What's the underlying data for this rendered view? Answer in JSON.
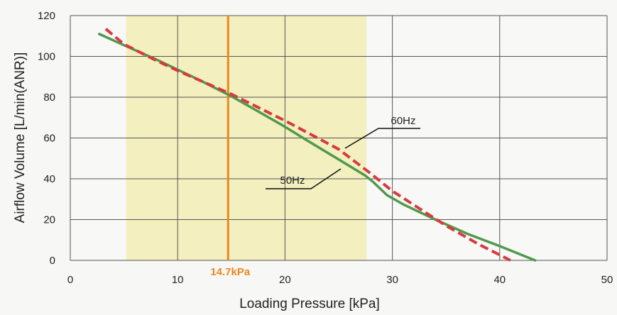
{
  "chart_data": {
    "type": "line",
    "xlabel": "Loading Pressure [kPa]",
    "ylabel": "Airflow Volume [L/min(ANR)]",
    "xlim": [
      0,
      50
    ],
    "ylim": [
      0,
      120
    ],
    "x_ticks": [
      0,
      10,
      20,
      30,
      40,
      50
    ],
    "y_ticks": [
      0,
      20,
      40,
      60,
      80,
      100,
      120
    ],
    "grid": true,
    "highlight_band": {
      "x_from": 5.2,
      "x_to": 27.6,
      "color": "#f3efbf"
    },
    "marker_line": {
      "x": 14.7,
      "label": "14.7kPa",
      "color": "#e8891e"
    },
    "series": [
      {
        "name": "50Hz",
        "color": "#4f9a4a",
        "style": "solid",
        "x": [
          2.7,
          5,
          8,
          10,
          12,
          15,
          18,
          20,
          22,
          25,
          27.5,
          28.2,
          29.5,
          31,
          34,
          37,
          40,
          43.3
        ],
        "y": [
          111,
          105.5,
          98.5,
          93.5,
          88.5,
          80.5,
          71.5,
          65.5,
          59,
          49.5,
          41.5,
          38.5,
          32,
          27.5,
          20,
          13,
          7,
          0
        ]
      },
      {
        "name": "60Hz",
        "color": "#d83a3f",
        "style": "dashed",
        "x": [
          3.3,
          5,
          8,
          10,
          15,
          20,
          25,
          28,
          30,
          35,
          38,
          41
        ],
        "y": [
          113.5,
          106,
          98,
          93,
          81.5,
          68.5,
          54.5,
          42.5,
          34,
          17,
          8,
          0
        ]
      }
    ],
    "annotations": [
      {
        "text": "60Hz",
        "series": "60Hz"
      },
      {
        "text": "50Hz",
        "series": "50Hz"
      }
    ]
  }
}
